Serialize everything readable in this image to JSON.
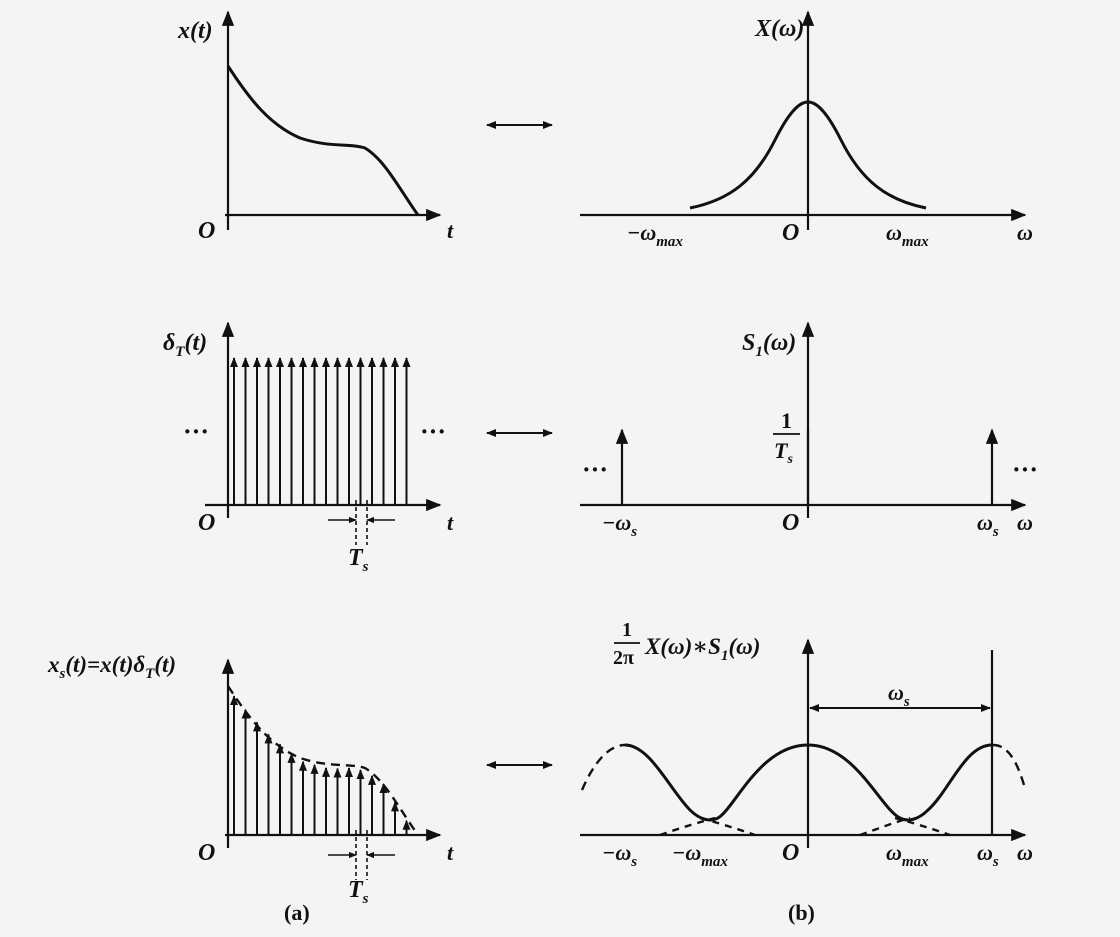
{
  "panels": {
    "a": {
      "caption": "(a)",
      "row1": {
        "ylabel": "x(t)",
        "origin": "O",
        "xlabel": "t"
      },
      "row2": {
        "ylabel": "δ",
        "ylabel_sub": "T",
        "ylabel_tail": "(t)",
        "origin": "O",
        "xlabel": "t",
        "dots_left": "···",
        "dots_right": "···",
        "spacing": "T",
        "spacing_sub": "s"
      },
      "row3": {
        "ylabel": "x",
        "ylabel_sub": "s",
        "ylabel_mid": "(t)=x(t)δ",
        "ylabel_sub2": "T",
        "ylabel_tail": "(t)",
        "origin": "O",
        "xlabel": "t",
        "spacing": "T",
        "spacing_sub": "s"
      }
    },
    "b": {
      "caption": "(b)",
      "row1": {
        "ylabel": "X(ω)",
        "origin": "O",
        "xlabel": "ω",
        "neg_tick": "−ω",
        "neg_tick_sub": "max",
        "pos_tick": "ω",
        "pos_tick_sub": "max"
      },
      "row2": {
        "ylabel": "S",
        "ylabel_sub": "1",
        "ylabel_tail": "(ω)",
        "origin": "O",
        "xlabel": "ω",
        "height_num": "1",
        "height_den": "T",
        "height_den_sub": "s",
        "neg_tick": "−ω",
        "neg_tick_sub": "s",
        "pos_tick": "ω",
        "pos_tick_sub": "s",
        "dots_left": "···",
        "dots_right": "···"
      },
      "row3": {
        "ylabel_num": "1",
        "ylabel_den": "2π",
        "ylabel_expr": "X(ω)∗S",
        "ylabel_sub": "1",
        "ylabel_tail": "(ω)",
        "origin": "O",
        "xlabel": "ω",
        "period": "ω",
        "period_sub": "s",
        "t1": "−ω",
        "t1_sub": "s",
        "t2": "−ω",
        "t2_sub": "max",
        "t3": "ω",
        "t3_sub": "max",
        "t4": "ω",
        "t4_sub": "s"
      }
    }
  },
  "arrows": "↔"
}
